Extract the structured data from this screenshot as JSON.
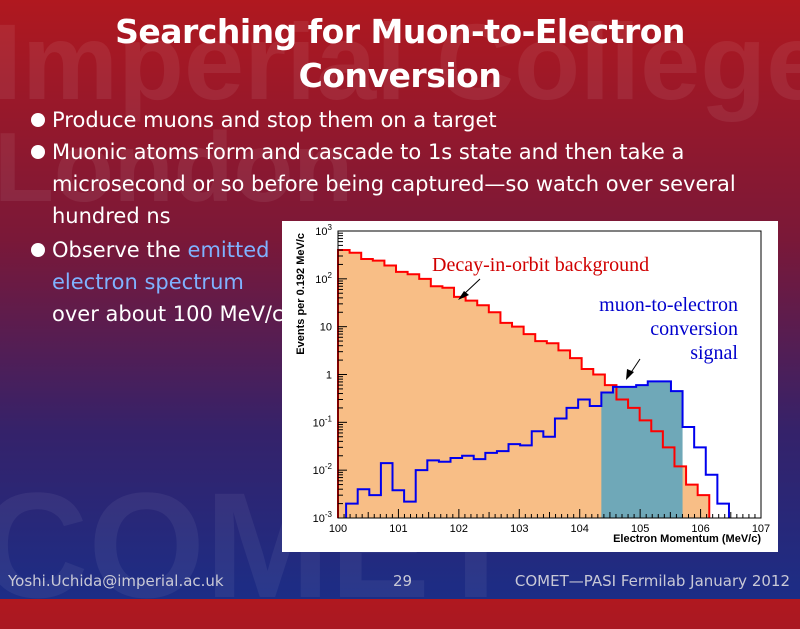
{
  "slide": {
    "title": "Searching for Muon-to-Electron Conversion",
    "bullets": [
      "Produce muons and stop them on a target",
      "Muonic atoms form and cascade to 1s state and then take a microsecond or so before being captured—so watch over several hundred ns"
    ],
    "bullet3": {
      "prefix": "Observe the",
      "highlight": "emitted electron spectrum",
      "suffix": "over about 100 MeV/c"
    },
    "footer": {
      "email": "Yoshi.Uchida@imperial.ac.uk",
      "page": "29",
      "event": "COMET—PASI Fermilab January 2012"
    },
    "watermark": [
      "Imperial College",
      "London",
      "COMET"
    ],
    "colors": {
      "accent": "#7fb2ff",
      "dio_fill": "#f8be86",
      "dio_line": "#ff0000",
      "signal_fill": "#6fa8b8",
      "signal_line": "#0000ee"
    }
  },
  "chart_data": {
    "type": "histogram",
    "xlabel": "Electron Momentum (MeV/c)",
    "ylabel": "Events per 0.192 MeV/c",
    "xlim": [
      100,
      107
    ],
    "ylim": [
      0.001,
      1000
    ],
    "log_y": true,
    "x_ticks": [
      "100",
      "101",
      "102",
      "103",
      "104",
      "105",
      "106",
      "107"
    ],
    "y_ticks": [
      {
        "value": 0.001,
        "base": "10",
        "exp": "-3"
      },
      {
        "value": 0.01,
        "base": "10",
        "exp": "-2"
      },
      {
        "value": 0.1,
        "base": "10",
        "exp": "-1"
      },
      {
        "value": 1,
        "base": "1",
        "exp": ""
      },
      {
        "value": 10,
        "base": "10",
        "exp": ""
      },
      {
        "value": 100,
        "base": "10",
        "exp": "2"
      },
      {
        "value": 1000,
        "base": "10",
        "exp": "3"
      }
    ],
    "bin_width": 0.192,
    "series": [
      {
        "name": "Decay-in-orbit background",
        "start": 100,
        "values": [
          400,
          350,
          260,
          240,
          190,
          140,
          125,
          100,
          70,
          65,
          42,
          35,
          28,
          20,
          12,
          10,
          7,
          5,
          4.5,
          3.2,
          2.2,
          1.3,
          1.0,
          0.6,
          0.3,
          0.2,
          0.11,
          0.065,
          0.03,
          0.012,
          0.005,
          0.003
        ]
      },
      {
        "name": "muon-to-electron conversion signal",
        "start": 100.134,
        "values": [
          0.002,
          0.004,
          0.003,
          0.014,
          0.0038,
          0.0022,
          0.01,
          0.016,
          0.015,
          0.018,
          0.02,
          0.017,
          0.023,
          0.025,
          0.035,
          0.033,
          0.065,
          0.05,
          0.12,
          0.2,
          0.3,
          0.22,
          0.42,
          0.55,
          0.55,
          0.6,
          0.72,
          0.72,
          0.45,
          0.08,
          0.03,
          0.008,
          0.002
        ]
      }
    ],
    "annotations": [
      {
        "text": "Decay-in-orbit background"
      },
      {
        "text": "muon-to-electron conversion signal",
        "lines": [
          "muon-to-electron",
          "conversion",
          "signal"
        ]
      }
    ]
  }
}
